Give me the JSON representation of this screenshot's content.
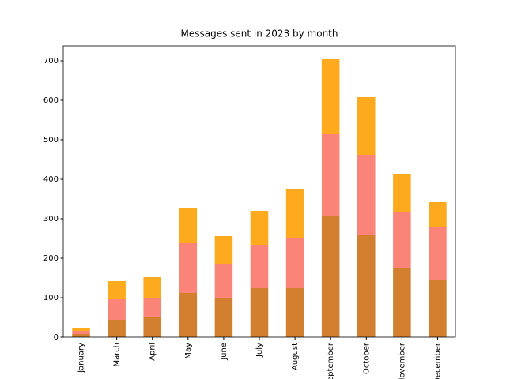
{
  "chart_data": {
    "type": "stacked_bar",
    "title": "Messages sent in 2023 by month",
    "categories": [
      "January",
      "March",
      "April",
      "May",
      "June",
      "July",
      "August",
      "September",
      "October",
      "November",
      "December"
    ],
    "series": [
      {
        "color": "#d2802f",
        "values": [
          8,
          44,
          52,
          112,
          100,
          124,
          124,
          308,
          260,
          174,
          144
        ]
      },
      {
        "color": "#fa8478",
        "values": [
          8,
          52,
          48,
          126,
          86,
          110,
          128,
          206,
          202,
          144,
          134
        ]
      },
      {
        "color": "#fdaa1f",
        "values": [
          6,
          46,
          52,
          90,
          70,
          86,
          124,
          190,
          146,
          96,
          64
        ]
      }
    ],
    "ylim": [
      0,
      738
    ],
    "yticks": [
      0,
      100,
      200,
      300,
      400,
      500,
      600,
      700
    ]
  }
}
